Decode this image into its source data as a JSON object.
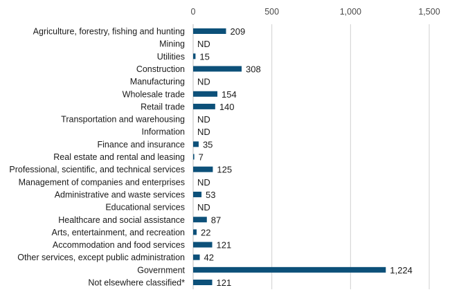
{
  "chart_data": {
    "type": "bar",
    "orientation": "horizontal",
    "title": "",
    "xlabel": "",
    "ylabel": "",
    "xlim": [
      0,
      1500
    ],
    "ticks": [
      0,
      500,
      1000,
      1500
    ],
    "tick_labels": [
      "0",
      "500",
      "1,000",
      "1,500"
    ],
    "grid": true,
    "bar_color": "#0c5079",
    "categories": [
      "Agriculture, forestry, fishing and hunting",
      "Mining",
      "Utilities",
      "Construction",
      "Manufacturing",
      "Wholesale trade",
      "Retail trade",
      "Transportation and warehousing",
      "Information",
      "Finance and insurance",
      "Real estate and rental and leasing",
      "Professional, scientific, and technical services",
      "Management of companies and enterprises",
      "Administrative and waste services",
      "Educational services",
      "Healthcare and social assistance",
      "Arts, entertainment, and recreation",
      "Accommodation and food services",
      "Other services, except public administration",
      "Government",
      "Not elsewhere classified*"
    ],
    "values": [
      209,
      null,
      15,
      308,
      null,
      154,
      140,
      null,
      null,
      35,
      7,
      125,
      null,
      53,
      null,
      87,
      22,
      121,
      42,
      1224,
      121
    ],
    "value_labels": [
      "209",
      "ND",
      "15",
      "308",
      "ND",
      "154",
      "140",
      "ND",
      "ND",
      "35",
      "7",
      "125",
      "ND",
      "53",
      "ND",
      "87",
      "22",
      "121",
      "42",
      "1,224",
      "121"
    ]
  }
}
